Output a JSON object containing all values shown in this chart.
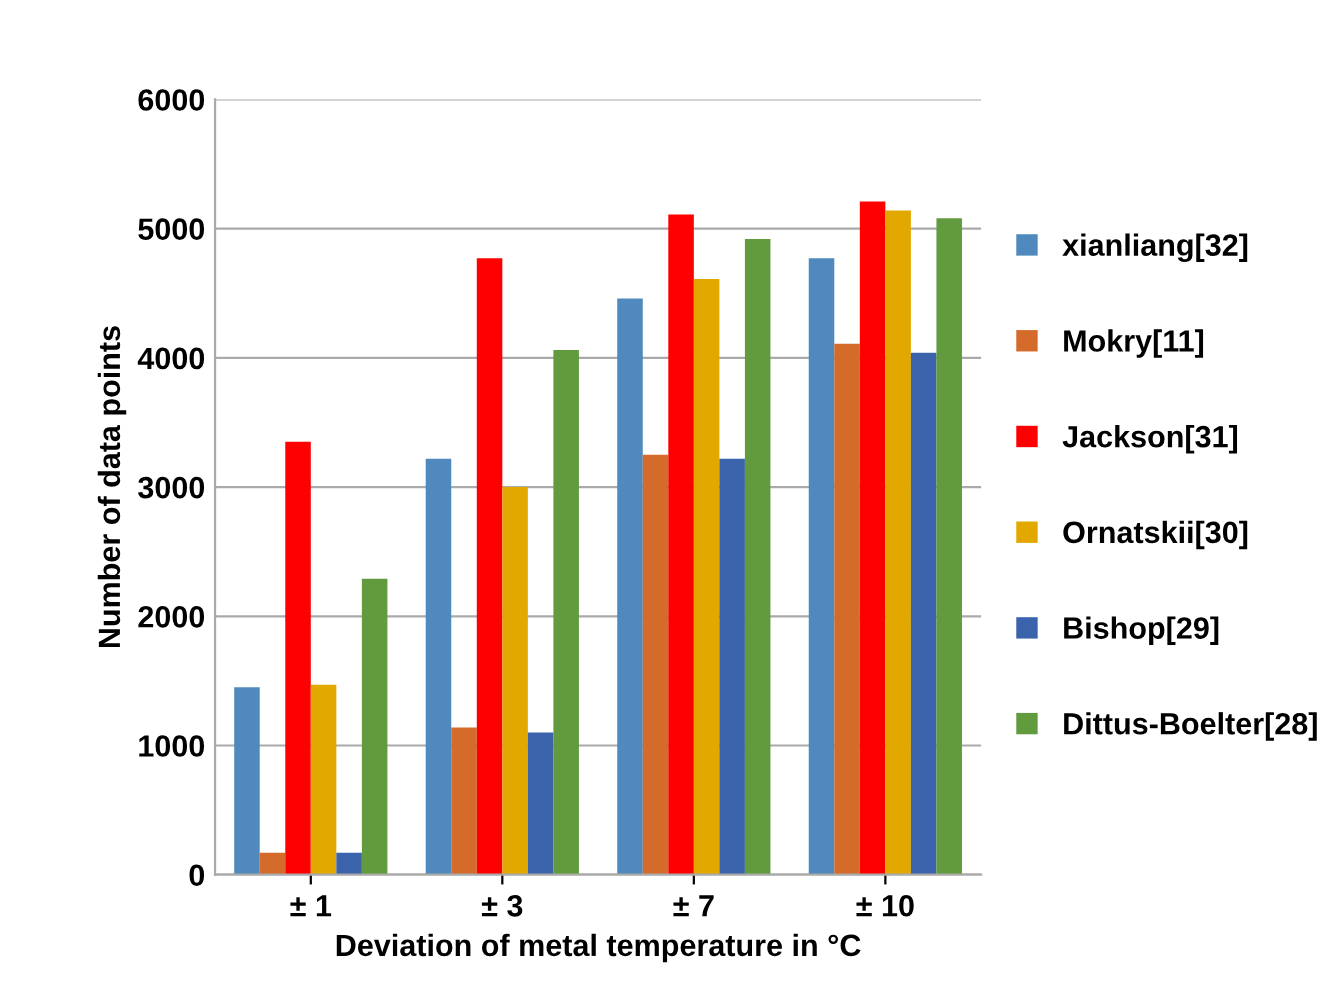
{
  "chart_data": {
    "type": "bar",
    "xlabel": "Deviation of metal temperature in °C",
    "ylabel": "Number of data points",
    "categories": [
      "± 1",
      "± 3",
      "± 7",
      "± 10"
    ],
    "series": [
      {
        "name": "xianliang[32]",
        "color": "#4f89bd",
        "values": [
          1450,
          3220,
          4460,
          4770
        ]
      },
      {
        "name": "Mokry[11]",
        "color": "#d46b2b",
        "values": [
          170,
          1140,
          3250,
          4110
        ]
      },
      {
        "name": "Jackson[31]",
        "color": "#ff0000",
        "values": [
          3350,
          4770,
          5110,
          5210
        ]
      },
      {
        "name": "Ornatskii[30]",
        "color": "#e2a800",
        "values": [
          1470,
          3000,
          4610,
          5140
        ]
      },
      {
        "name": "Bishop[29]",
        "color": "#3b63ab",
        "values": [
          170,
          1100,
          3220,
          4040
        ]
      },
      {
        "name": "Dittus-Boelter[28]",
        "color": "#629a3e",
        "values": [
          2290,
          4060,
          4920,
          5080
        ]
      }
    ],
    "ylim": [
      0,
      6000
    ],
    "yticks": [
      0,
      1000,
      2000,
      3000,
      4000,
      5000,
      6000
    ],
    "grid": "y",
    "legend": "right"
  }
}
